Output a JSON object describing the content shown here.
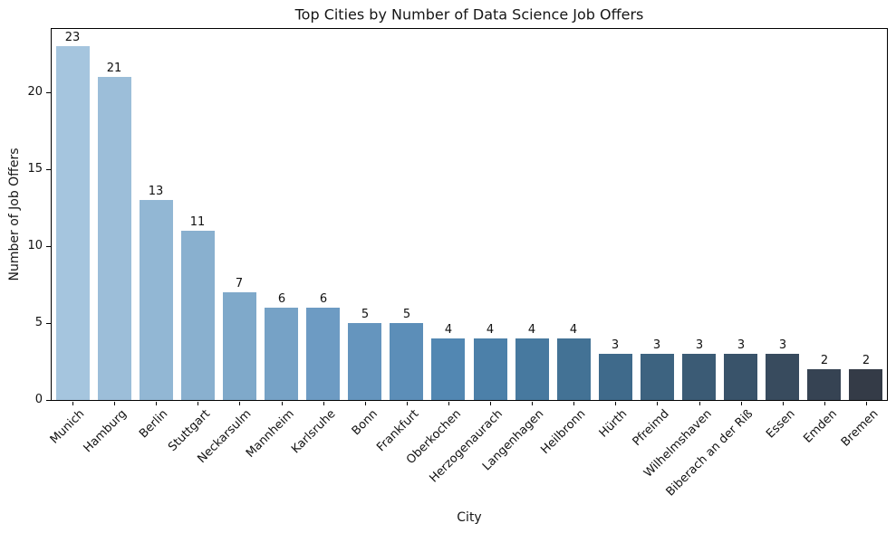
{
  "chart_data": {
    "type": "bar",
    "title": "Top Cities by Number of Data Science Job Offers",
    "xlabel": "City",
    "ylabel": "Number of Job Offers",
    "categories": [
      "Munich",
      "Hamburg",
      "Berlin",
      "Stuttgart",
      "Neckarsulm",
      "Mannheim",
      "Karlsruhe",
      "Bonn",
      "Frankfurt",
      "Oberkochen",
      "Herzogenaurach",
      "Langenhagen",
      "Heilbronn",
      "Hürth",
      "Pfreimd",
      "Wilhelmshaven",
      "Biberach an der Riß",
      "Essen",
      "Emden",
      "Bremen"
    ],
    "values": [
      23,
      21,
      13,
      11,
      7,
      6,
      6,
      5,
      5,
      4,
      4,
      4,
      4,
      3,
      3,
      3,
      3,
      3,
      2,
      2
    ],
    "value_labels_shown": true,
    "bar_colors": [
      "#a5c5de",
      "#9cbed9",
      "#92b7d4",
      "#89b0cf",
      "#7fa9ca",
      "#76a2c6",
      "#6d9bc3",
      "#6595be",
      "#5c8eb8",
      "#5287b2",
      "#4c80a9",
      "#47799f",
      "#437295",
      "#3f6a8b",
      "#3d6380",
      "#3b5b75",
      "#39536a",
      "#384b5e",
      "#364353",
      "#343b47"
    ],
    "yticks": [
      0,
      5,
      10,
      15,
      20
    ],
    "ylim": [
      0,
      24.1
    ],
    "xtick_rotation_deg": 45,
    "grid": false,
    "legend_position": "none",
    "frame_color": "#000000",
    "background_color": "#ffffff"
  }
}
